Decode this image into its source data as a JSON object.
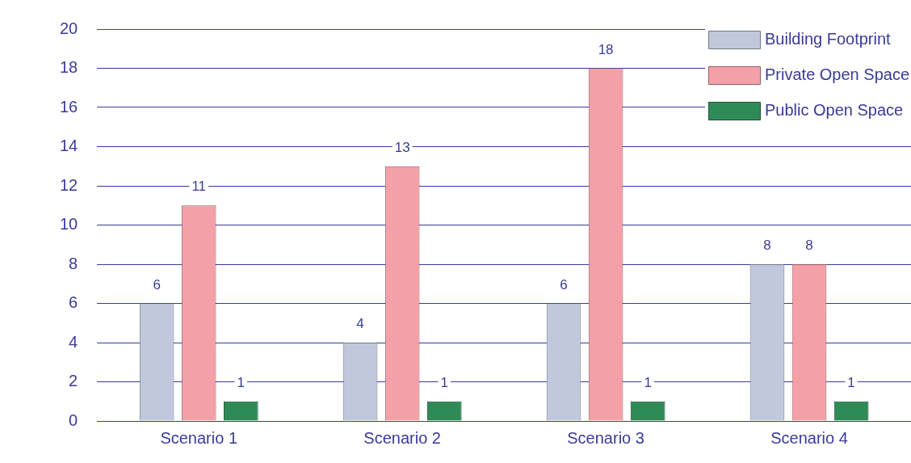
{
  "chart_data": {
    "type": "bar",
    "categories": [
      "Scenario 1",
      "Scenario 2",
      "Scenario 3",
      "Scenario 4"
    ],
    "series": [
      {
        "name": "Building Footprint",
        "color": "#c0c8dc",
        "values": [
          6,
          4,
          6,
          8
        ]
      },
      {
        "name": "Private Open Space",
        "color": "#f4a0a8",
        "values": [
          11,
          13,
          18,
          8
        ]
      },
      {
        "name": "Public Open Space",
        "color": "#2e8b57",
        "values": [
          1,
          1,
          1,
          1
        ]
      }
    ],
    "ylim": [
      0,
      20
    ],
    "yticks": [
      0,
      2,
      4,
      6,
      8,
      10,
      12,
      14,
      16,
      18,
      20
    ],
    "grid": "y",
    "legend": "top right",
    "data_labels": true
  }
}
